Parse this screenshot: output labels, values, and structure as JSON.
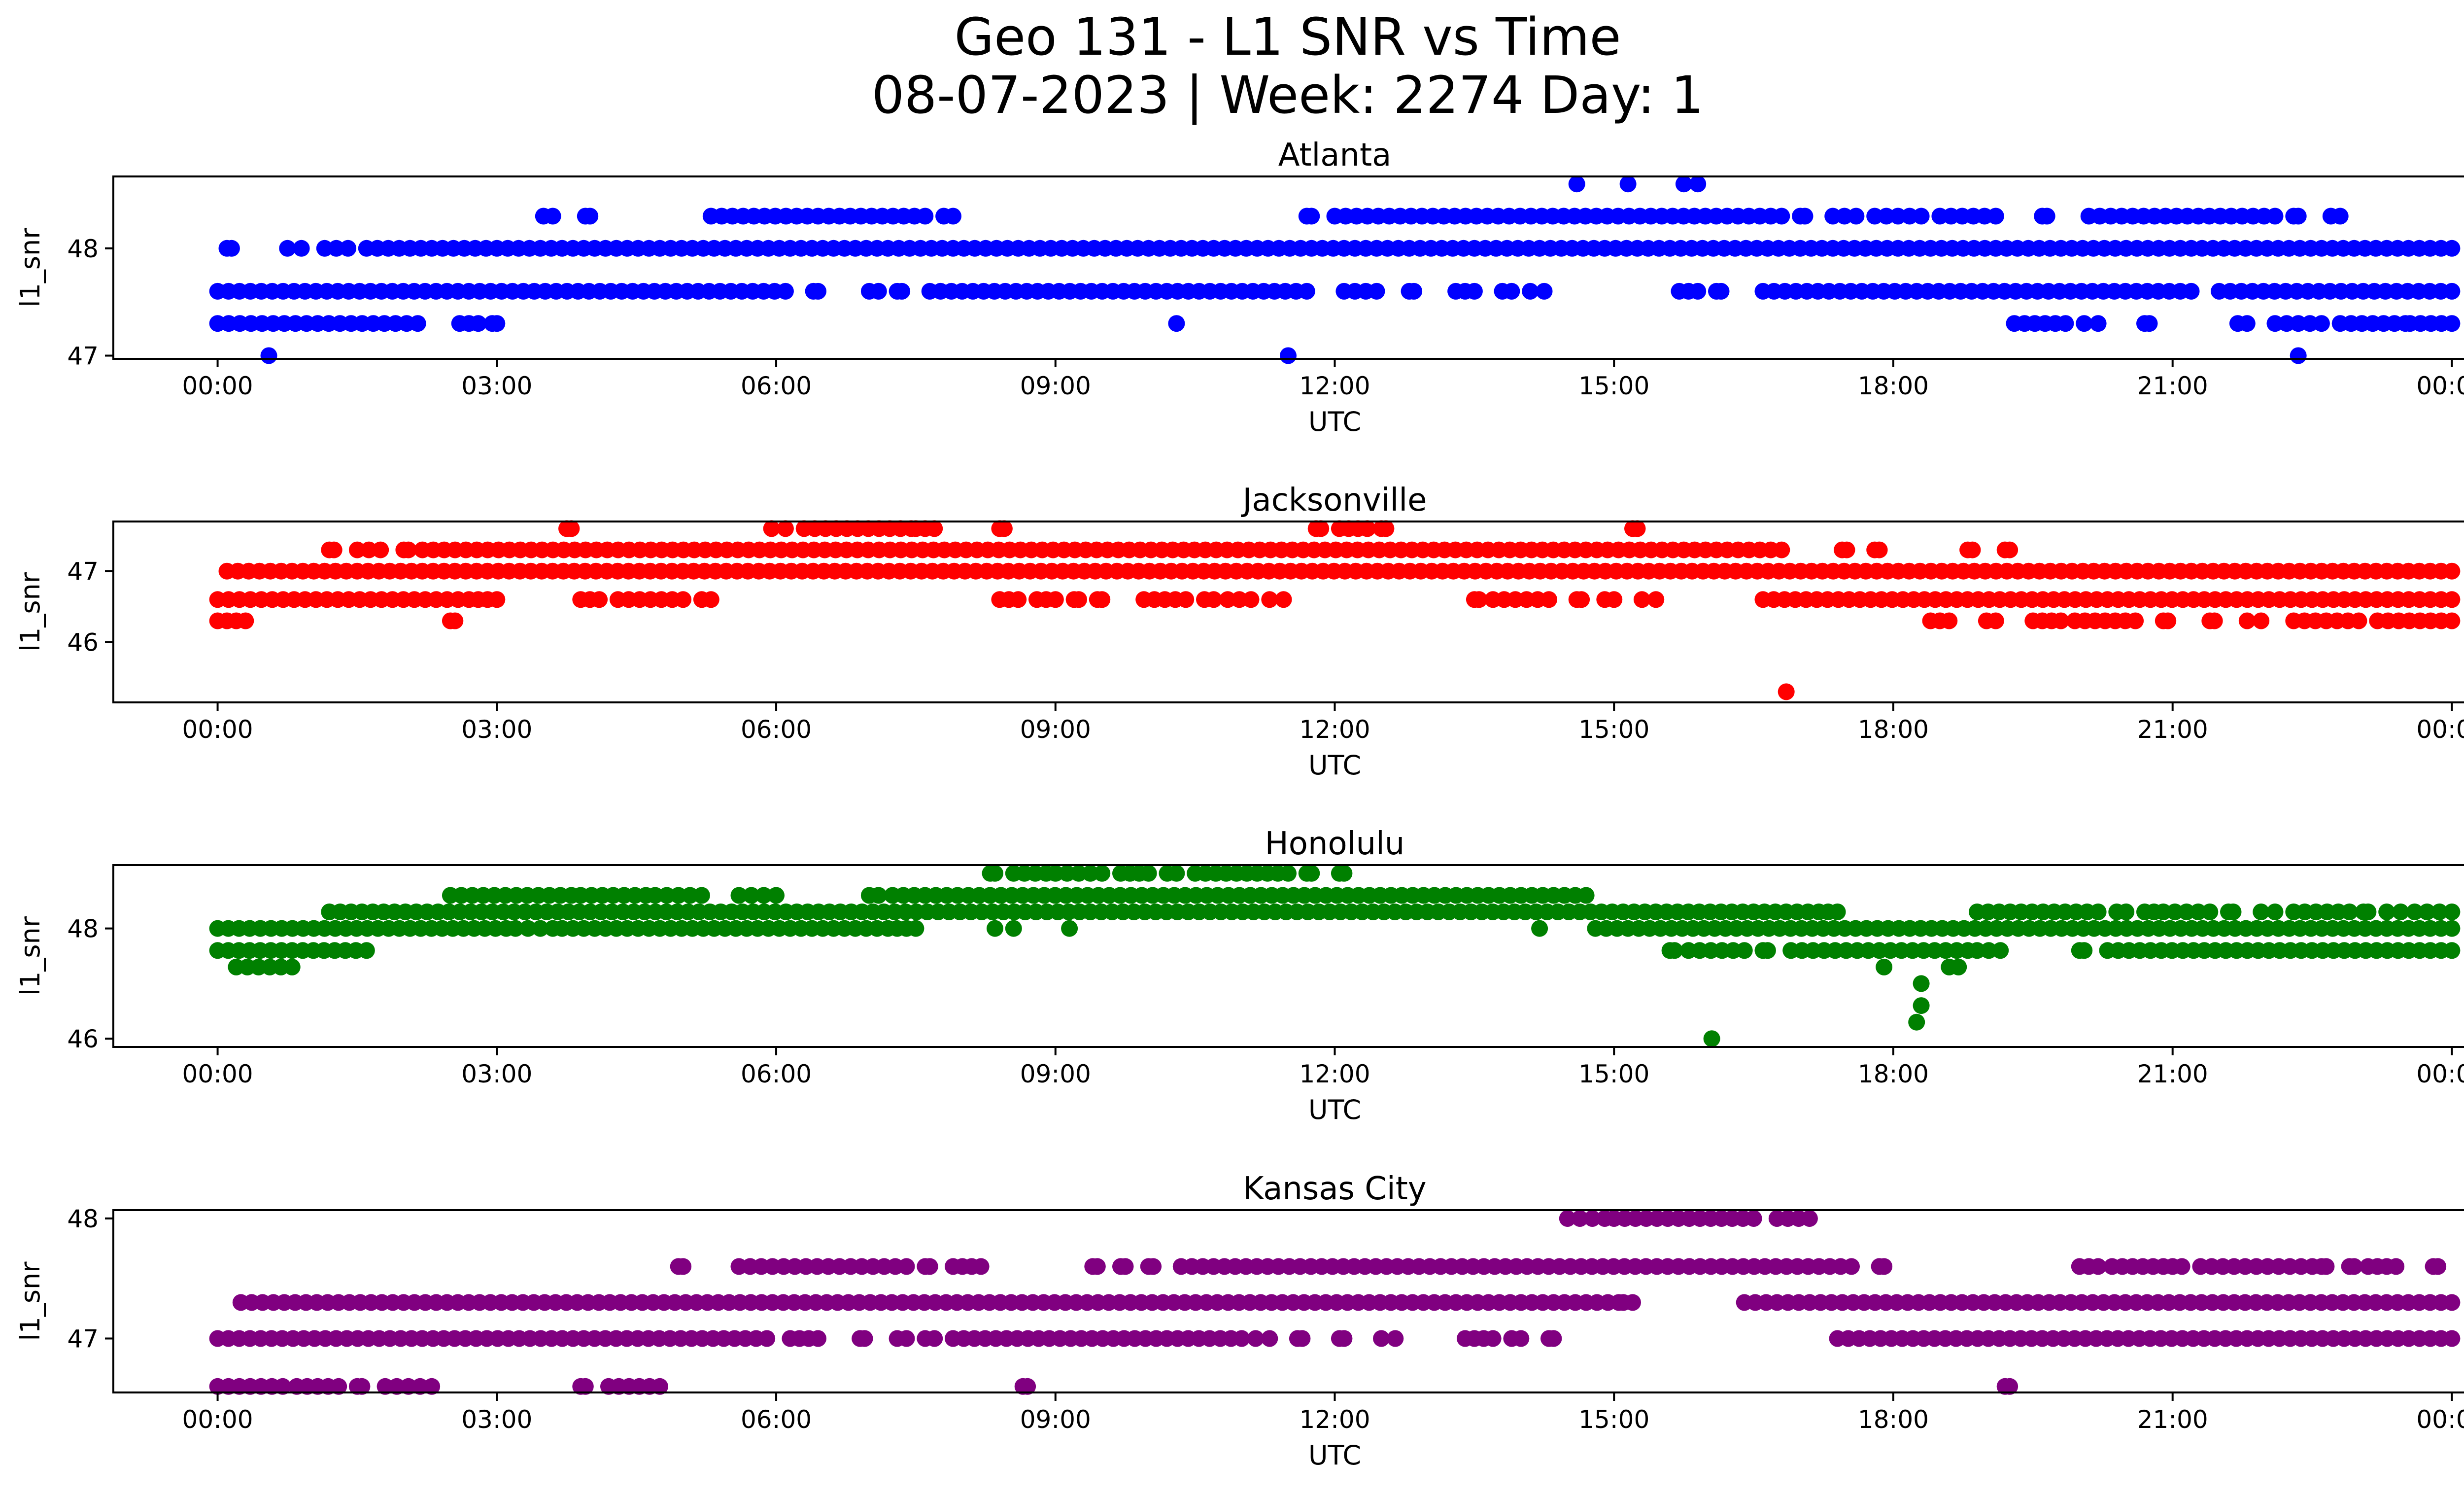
{
  "figure": {
    "title_line1": "Geo 131 - L1 SNR vs Time",
    "title_line2": "08-07-2023 | Week: 2274 Day: 1"
  },
  "chart_data": [
    {
      "type": "scatter",
      "title": "Atlanta",
      "xlabel": "UTC",
      "ylabel": "l1_snr",
      "color": "#0000ff",
      "x_unit": "hours UTC",
      "xlim": [
        -1.12,
        25.12
      ],
      "x_ticks": [
        "00:00",
        "03:00",
        "06:00",
        "09:00",
        "12:00",
        "15:00",
        "18:00",
        "21:00",
        "00:00"
      ],
      "ylim": [
        46.97,
        48.67
      ],
      "y_ticks": [
        47,
        48
      ],
      "levels": [
        47.3,
        47.6,
        48.0,
        48.3,
        48.6
      ],
      "bands": [
        {
          "y": 48.0,
          "segments": [
            [
              0.1,
              0.15
            ],
            [
              0.75,
              0.9
            ],
            [
              1.15,
              1.4
            ],
            [
              1.6,
              24.0
            ]
          ]
        },
        {
          "y": 47.6,
          "segments": [
            [
              0.0,
              6.1
            ],
            [
              6.4,
              6.45
            ],
            [
              7.0,
              7.1
            ],
            [
              7.3,
              7.35
            ],
            [
              7.65,
              11.7
            ],
            [
              12.1,
              12.45
            ],
            [
              12.8,
              12.85
            ],
            [
              13.3,
              13.5
            ],
            [
              13.8,
              13.9
            ],
            [
              14.1,
              14.25
            ],
            [
              15.7,
              15.9
            ],
            [
              16.1,
              16.15
            ],
            [
              16.6,
              21.2
            ],
            [
              21.5,
              24.0
            ]
          ]
        },
        {
          "y": 47.3,
          "segments": [
            [
              0.0,
              2.15
            ],
            [
              2.6,
              2.8
            ],
            [
              2.95,
              3.0
            ],
            [
              19.3,
              19.85
            ],
            [
              20.05,
              20.2
            ],
            [
              20.7,
              20.75
            ],
            [
              21.7,
              21.8
            ],
            [
              22.1,
              22.6
            ],
            [
              22.8,
              23.5
            ],
            [
              23.55,
              24.0
            ]
          ]
        },
        {
          "y": 48.3,
          "segments": [
            [
              3.5,
              3.6
            ],
            [
              3.95,
              4.0
            ],
            [
              5.3,
              7.6
            ],
            [
              7.8,
              7.9
            ],
            [
              11.7,
              11.75
            ],
            [
              12.0,
              16.8
            ],
            [
              17.0,
              17.05
            ],
            [
              17.35,
              17.6
            ],
            [
              17.8,
              18.3
            ],
            [
              18.5,
              19.1
            ],
            [
              19.6,
              19.65
            ],
            [
              20.1,
              22.1
            ],
            [
              22.3,
              22.35
            ],
            [
              22.7,
              22.8
            ]
          ]
        }
      ],
      "points": [
        {
          "x": 0.55,
          "y": 47.0
        },
        {
          "x": 10.3,
          "y": 47.3
        },
        {
          "x": 11.5,
          "y": 47.0
        },
        {
          "x": 14.6,
          "y": 48.6
        },
        {
          "x": 15.15,
          "y": 48.6
        },
        {
          "x": 15.75,
          "y": 48.6
        },
        {
          "x": 15.9,
          "y": 48.6
        },
        {
          "x": 22.35,
          "y": 47.0
        }
      ]
    },
    {
      "type": "scatter",
      "title": "Jacksonville",
      "xlabel": "UTC",
      "ylabel": "l1_snr",
      "color": "#ff0000",
      "x_unit": "hours UTC",
      "xlim": [
        -1.12,
        25.12
      ],
      "x_ticks": [
        "00:00",
        "03:00",
        "06:00",
        "09:00",
        "12:00",
        "15:00",
        "18:00",
        "21:00",
        "00:00"
      ],
      "ylim": [
        45.15,
        47.7
      ],
      "y_ticks": [
        46,
        47
      ],
      "levels": [
        46.3,
        46.6,
        47.0,
        47.3,
        47.6
      ],
      "bands": [
        {
          "y": 47.0,
          "segments": [
            [
              0.1,
              24.0
            ]
          ]
        },
        {
          "y": 46.6,
          "segments": [
            [
              0.0,
              2.7
            ],
            [
              2.8,
              3.0
            ],
            [
              3.9,
              4.1
            ],
            [
              4.3,
              5.0
            ],
            [
              5.2,
              5.3
            ],
            [
              8.4,
              8.6
            ],
            [
              8.8,
              9.0
            ],
            [
              9.2,
              9.25
            ],
            [
              9.45,
              9.5
            ],
            [
              9.95,
              10.4
            ],
            [
              10.6,
              10.7
            ],
            [
              10.85,
              11.1
            ],
            [
              11.3,
              11.45
            ],
            [
              13.5,
              13.55
            ],
            [
              13.7,
              14.3
            ],
            [
              14.6,
              14.65
            ],
            [
              14.9,
              15.0
            ],
            [
              15.3,
              15.45
            ],
            [
              16.6,
              24.0
            ]
          ]
        },
        {
          "y": 46.3,
          "segments": [
            [
              0.0,
              0.3
            ],
            [
              2.5,
              2.55
            ],
            [
              18.4,
              18.6
            ],
            [
              19.0,
              19.1
            ],
            [
              19.5,
              19.8
            ],
            [
              19.95,
              20.6
            ],
            [
              20.9,
              20.95
            ],
            [
              21.4,
              21.45
            ],
            [
              21.8,
              21.95
            ],
            [
              22.3,
              23.0
            ],
            [
              23.2,
              24.0
            ]
          ]
        },
        {
          "y": 47.3,
          "segments": [
            [
              1.2,
              1.25
            ],
            [
              1.5,
              1.75
            ],
            [
              2.0,
              2.05
            ],
            [
              2.2,
              16.8
            ],
            [
              17.45,
              17.5
            ],
            [
              17.8,
              17.85
            ],
            [
              18.8,
              18.85
            ],
            [
              19.2,
              19.25
            ]
          ]
        },
        {
          "y": 47.6,
          "segments": [
            [
              3.75,
              3.8
            ],
            [
              5.95,
              6.1
            ],
            [
              6.3,
              7.45
            ],
            [
              7.5,
              7.7
            ],
            [
              8.4,
              8.45
            ],
            [
              11.8,
              11.85
            ],
            [
              12.05,
              12.35
            ],
            [
              12.5,
              12.55
            ],
            [
              15.2,
              15.25
            ]
          ]
        }
      ],
      "points": [
        {
          "x": 16.85,
          "y": 45.3
        }
      ]
    },
    {
      "type": "scatter",
      "title": "Honolulu",
      "xlabel": "UTC",
      "ylabel": "l1_snr",
      "color": "#008000",
      "x_unit": "hours UTC",
      "xlim": [
        -1.12,
        25.12
      ],
      "x_ticks": [
        "00:00",
        "03:00",
        "06:00",
        "09:00",
        "12:00",
        "15:00",
        "18:00",
        "21:00",
        "00:00"
      ],
      "ylim": [
        45.85,
        49.15
      ],
      "y_ticks": [
        46,
        48
      ],
      "levels": [
        46.3,
        46.6,
        47.0,
        47.3,
        47.6,
        48.0,
        48.3,
        48.6,
        49.0
      ],
      "bands": [
        {
          "y": 48.0,
          "segments": [
            [
              0.0,
              3.1
            ],
            [
              3.2,
              3.6
            ],
            [
              3.7,
              7.2
            ],
            [
              7.3,
              7.5
            ],
            [
              14.8,
              24.0
            ]
          ]
        },
        {
          "y": 47.6,
          "segments": [
            [
              0.0,
              1.6
            ],
            [
              15.6,
              15.65
            ],
            [
              15.8,
              16.4
            ],
            [
              16.6,
              16.65
            ],
            [
              16.9,
              18.8
            ],
            [
              18.9,
              19.15
            ],
            [
              20.0,
              20.05
            ],
            [
              20.3,
              24.0
            ]
          ]
        },
        {
          "y": 47.3,
          "segments": [
            [
              0.2,
              0.8
            ]
          ]
        },
        {
          "y": 48.3,
          "segments": [
            [
              1.2,
              17.2
            ],
            [
              17.3,
              17.4
            ],
            [
              18.9,
              20.2
            ],
            [
              20.4,
              20.5
            ],
            [
              20.7,
              20.8
            ],
            [
              20.9,
              21.4
            ],
            [
              21.6,
              21.65
            ],
            [
              21.95,
              22.1
            ],
            [
              22.3,
              22.9
            ],
            [
              23.05,
              23.1
            ],
            [
              23.3,
              23.45
            ],
            [
              23.6,
              24.0
            ]
          ]
        },
        {
          "y": 48.6,
          "segments": [
            [
              2.5,
              3.8
            ],
            [
              3.9,
              4.6
            ],
            [
              4.7,
              5.2
            ],
            [
              5.6,
              6.0
            ],
            [
              7.0,
              7.1
            ],
            [
              7.25,
              14.7
            ]
          ]
        },
        {
          "y": 49.0,
          "segments": [
            [
              8.3,
              8.35
            ],
            [
              8.55,
              8.9
            ],
            [
              9.0,
              9.5
            ],
            [
              9.7,
              10.0
            ],
            [
              10.2,
              10.3
            ],
            [
              10.5,
              11.5
            ],
            [
              11.7,
              11.75
            ],
            [
              12.05,
              12.1
            ]
          ]
        }
      ],
      "points": [
        {
          "x": 8.35,
          "y": 48.0
        },
        {
          "x": 8.55,
          "y": 48.0
        },
        {
          "x": 9.15,
          "y": 48.0
        },
        {
          "x": 14.2,
          "y": 48.0
        },
        {
          "x": 16.05,
          "y": 46.0
        },
        {
          "x": 17.9,
          "y": 47.3
        },
        {
          "x": 18.25,
          "y": 46.3
        },
        {
          "x": 18.3,
          "y": 46.6
        },
        {
          "x": 18.3,
          "y": 47.0
        },
        {
          "x": 18.6,
          "y": 47.3
        },
        {
          "x": 18.7,
          "y": 47.3
        }
      ]
    },
    {
      "type": "scatter",
      "title": "Kansas City",
      "xlabel": "UTC",
      "ylabel": "l1_snr",
      "color": "#800080",
      "x_unit": "hours UTC",
      "xlim": [
        -1.12,
        25.12
      ],
      "x_ticks": [
        "00:00",
        "03:00",
        "06:00",
        "09:00",
        "12:00",
        "15:00",
        "18:00",
        "21:00",
        "00:00"
      ],
      "ylim": [
        46.55,
        48.07
      ],
      "y_ticks": [
        47,
        48
      ],
      "levels": [
        46.6,
        47.0,
        47.3,
        47.6,
        48.0
      ],
      "bands": [
        {
          "y": 47.0,
          "segments": [
            [
              0.0,
              5.9
            ],
            [
              6.15,
              6.45
            ],
            [
              6.9,
              6.95
            ],
            [
              7.3,
              7.4
            ],
            [
              7.6,
              7.7
            ],
            [
              7.9,
              11.0
            ],
            [
              11.15,
              11.3
            ],
            [
              11.6,
              11.65
            ],
            [
              12.05,
              12.1
            ],
            [
              12.5,
              12.65
            ],
            [
              13.4,
              13.7
            ],
            [
              13.9,
              14.0
            ],
            [
              14.3,
              14.35
            ],
            [
              17.4,
              24.0
            ]
          ]
        },
        {
          "y": 47.3,
          "segments": [
            [
              0.25,
              15.05
            ],
            [
              15.1,
              15.2
            ],
            [
              16.4,
              24.0
            ]
          ]
        },
        {
          "y": 46.6,
          "segments": [
            [
              0.0,
              0.7
            ],
            [
              0.85,
              1.3
            ],
            [
              1.5,
              1.55
            ],
            [
              1.8,
              2.3
            ],
            [
              3.9,
              3.95
            ],
            [
              4.2,
              4.75
            ],
            [
              8.65,
              8.7
            ],
            [
              19.2,
              19.25
            ]
          ]
        },
        {
          "y": 47.6,
          "segments": [
            [
              4.95,
              5.0
            ],
            [
              5.6,
              7.4
            ],
            [
              7.6,
              7.65
            ],
            [
              7.9,
              8.2
            ],
            [
              9.4,
              9.45
            ],
            [
              9.7,
              9.75
            ],
            [
              10.0,
              10.05
            ],
            [
              10.35,
              17.55
            ],
            [
              17.85,
              17.9
            ],
            [
              20.0,
              20.2
            ],
            [
              20.35,
              20.9
            ],
            [
              21.0,
              21.1
            ],
            [
              21.3,
              22.5
            ],
            [
              22.6,
              22.65
            ],
            [
              22.9,
              22.95
            ],
            [
              23.1,
              23.4
            ],
            [
              23.8,
              23.85
            ]
          ]
        },
        {
          "y": 48.0,
          "segments": [
            [
              14.5,
              14.9
            ],
            [
              15.0,
              16.5
            ],
            [
              16.75,
              17.1
            ]
          ]
        }
      ],
      "points": []
    }
  ]
}
